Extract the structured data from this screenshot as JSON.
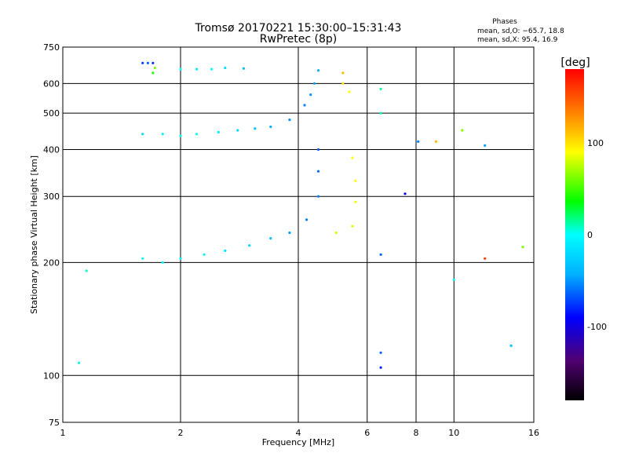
{
  "chart_data": {
    "type": "scatter",
    "title": "Tromsø 20170221 15:30:00–15:31:43",
    "subtitle": "RwPretec (8p)",
    "xlabel": "Frequency [MHz]",
    "ylabel": "Stationary phase Virtual Height [km]",
    "x_scale": "log",
    "y_scale": "log",
    "xlim": [
      1,
      16
    ],
    "ylim": [
      75,
      750
    ],
    "x_ticks": [
      1,
      2,
      4,
      6,
      8,
      10,
      16
    ],
    "y_ticks": [
      75,
      100,
      200,
      300,
      400,
      500,
      600,
      750
    ],
    "grid": true,
    "stats": {
      "heading": "Phases",
      "line_o": "mean, sd,O: −65.7, 18.8",
      "line_x": "mean, sd,X:  95.4, 16.9"
    },
    "colorbar": {
      "label": "[deg]",
      "ticks": [
        100,
        0,
        -100
      ],
      "range": [
        -180,
        180
      ]
    },
    "series": [
      {
        "name": "",
        "points": [
          [
            1.6,
            680,
            -120
          ],
          [
            1.65,
            680,
            -110
          ],
          [
            1.7,
            680,
            -125
          ],
          [
            1.72,
            660,
            60
          ],
          [
            1.7,
            640,
            30
          ],
          [
            2.0,
            655,
            -60
          ],
          [
            2.2,
            655,
            -65
          ],
          [
            2.4,
            655,
            -60
          ],
          [
            2.6,
            660,
            -70
          ],
          [
            2.9,
            658,
            -80
          ],
          [
            4.5,
            650,
            -85
          ],
          [
            4.4,
            600,
            -90
          ],
          [
            4.3,
            560,
            -95
          ],
          [
            4.15,
            525,
            -100
          ],
          [
            5.2,
            640,
            120
          ],
          [
            5.2,
            600,
            110
          ],
          [
            5.4,
            570,
            100
          ],
          [
            1.6,
            440,
            -70
          ],
          [
            1.8,
            440,
            -65
          ],
          [
            2.0,
            435,
            -60
          ],
          [
            2.2,
            440,
            -62
          ],
          [
            2.5,
            445,
            -66
          ],
          [
            2.8,
            450,
            -72
          ],
          [
            3.1,
            455,
            -78
          ],
          [
            3.4,
            460,
            -85
          ],
          [
            3.8,
            480,
            -95
          ],
          [
            4.5,
            400,
            -110
          ],
          [
            4.5,
            350,
            -105
          ],
          [
            4.5,
            300,
            -100
          ],
          [
            5.5,
            380,
            100
          ],
          [
            5.6,
            330,
            100
          ],
          [
            5.6,
            290,
            95
          ],
          [
            5.5,
            250,
            90
          ],
          [
            5.0,
            240,
            85
          ],
          [
            1.1,
            108,
            -50
          ],
          [
            1.15,
            190,
            -40
          ],
          [
            1.6,
            205,
            -55
          ],
          [
            1.8,
            200,
            -58
          ],
          [
            2.0,
            205,
            -62
          ],
          [
            2.3,
            210,
            -65
          ],
          [
            2.6,
            215,
            -68
          ],
          [
            3.0,
            222,
            -72
          ],
          [
            3.4,
            232,
            -80
          ],
          [
            3.8,
            240,
            -90
          ],
          [
            4.2,
            260,
            -100
          ],
          [
            6.5,
            580,
            -30
          ],
          [
            6.5,
            500,
            -40
          ],
          [
            6.5,
            210,
            -110
          ],
          [
            6.5,
            115,
            -110
          ],
          [
            6.5,
            105,
            -130
          ],
          [
            7.5,
            305,
            -140
          ],
          [
            8.1,
            420,
            -100
          ],
          [
            9.0,
            420,
            120
          ],
          [
            10.5,
            450,
            60
          ],
          [
            12,
            410,
            -90
          ],
          [
            12,
            205,
            160
          ],
          [
            10,
            180,
            -60
          ],
          [
            15,
            220,
            60
          ],
          [
            14,
            120,
            -80
          ]
        ]
      }
    ]
  }
}
